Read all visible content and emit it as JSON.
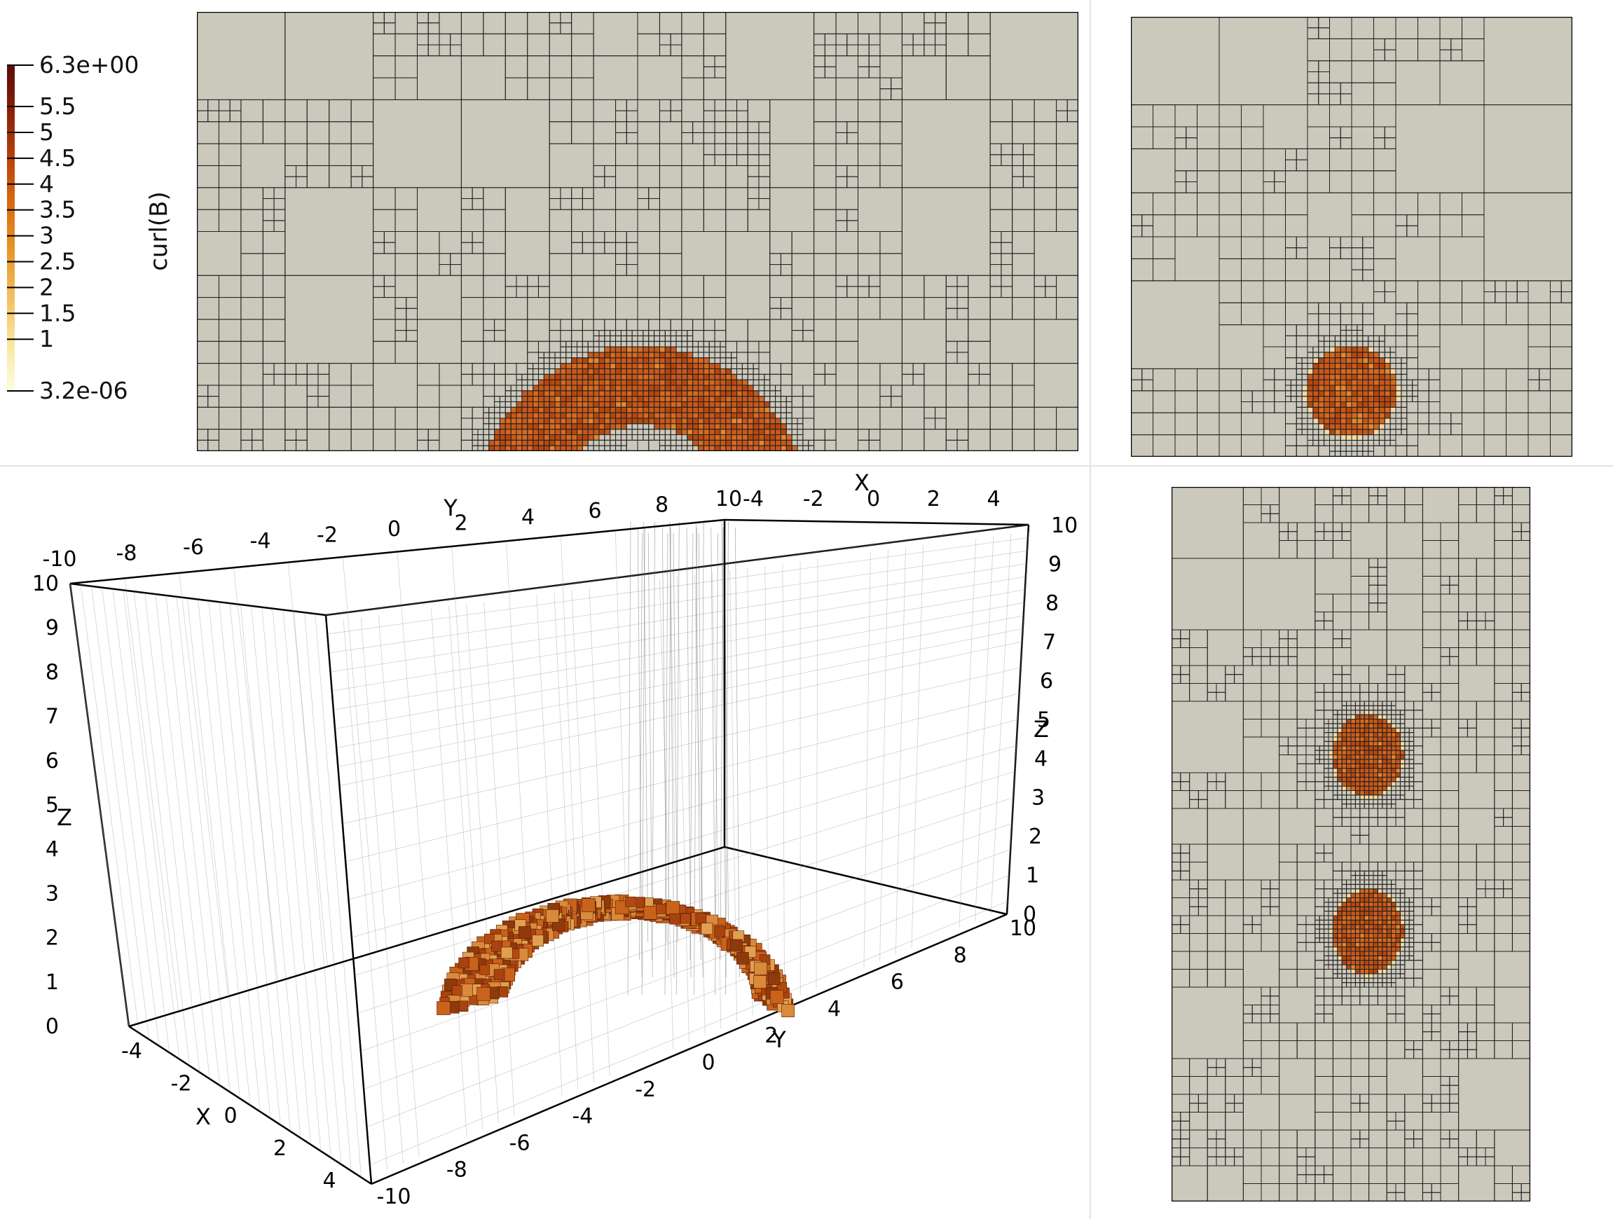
{
  "colorbar": {
    "title": "curl(B)",
    "max_label": "6.3e+00",
    "min_label": "3.2e-06",
    "max": 6.3,
    "min": 3.2e-06,
    "ticks": [
      {
        "value": 5.5,
        "label": "5.5"
      },
      {
        "value": 5,
        "label": "5"
      },
      {
        "value": 4.5,
        "label": "4.5"
      },
      {
        "value": 4,
        "label": "4"
      },
      {
        "value": 3.5,
        "label": "3.5"
      },
      {
        "value": 3,
        "label": "3"
      },
      {
        "value": 2.5,
        "label": "2.5"
      },
      {
        "value": 2,
        "label": "2"
      },
      {
        "value": 1.5,
        "label": "1.5"
      },
      {
        "value": 1,
        "label": "1"
      }
    ],
    "colors": [
      "#fdfde0",
      "#f8e7a0",
      "#f2c060",
      "#e8962a",
      "#d96c10",
      "#b8420a",
      "#8a2008",
      "#5a0c06"
    ]
  },
  "mesh": {
    "background_color": "#cbc8bc",
    "line_color": "#222222",
    "blob_colors": [
      "#c9581a",
      "#d66a1e",
      "#b8470f",
      "#e0892e"
    ],
    "halo_color": "#f1d9a2"
  },
  "axes3d": {
    "x_name": "X",
    "y_name": "Y",
    "z_name": "Z",
    "top_y_ticks": [
      "-10",
      "-8",
      "-6",
      "-4",
      "-2",
      "0",
      "2",
      "4",
      "6",
      "8",
      "10"
    ],
    "top_x_ticks": [
      "-4",
      "-2",
      "0",
      "2",
      "4"
    ],
    "z_ticks": [
      "0",
      "1",
      "2",
      "3",
      "4",
      "5",
      "6",
      "7",
      "8",
      "9",
      "10"
    ],
    "bottom_x_ticks": [
      "-4",
      "-2",
      "0",
      "2",
      "4"
    ],
    "bottom_y_ticks": [
      "-10",
      "-8",
      "-6",
      "-4",
      "-2",
      "0",
      "2",
      "4",
      "6",
      "8",
      "10"
    ]
  }
}
